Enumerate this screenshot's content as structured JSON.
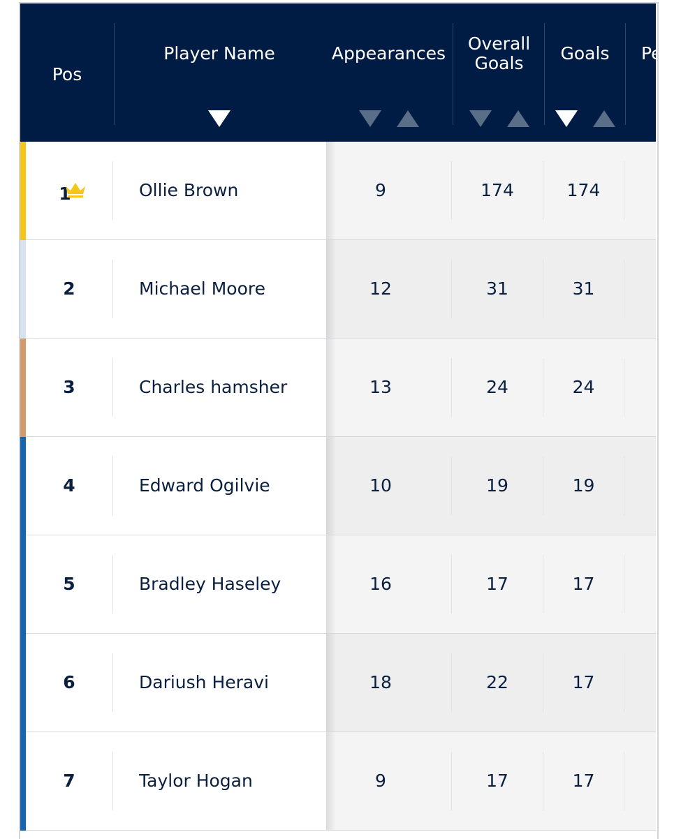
{
  "colors": {
    "header_bg": "#001c44",
    "gold": "#f5c518",
    "silver": "#d4e3ef",
    "bronze": "#d39a6c",
    "blue": "#1565b0"
  },
  "header": {
    "pos": "Pos",
    "player_name": "Player Name",
    "appearances": "Appearances",
    "overall_goals_line1": "Overall",
    "overall_goals_line2": "Goals",
    "goals": "Goals",
    "partial": "Pe"
  },
  "rows": [
    {
      "pos": "1",
      "name": "Ollie Brown",
      "appearances": "9",
      "overall_goals": "174",
      "goals": "174",
      "stripe": "gold",
      "crown_icon": "crown-icon"
    },
    {
      "pos": "2",
      "name": "Michael Moore",
      "appearances": "12",
      "overall_goals": "31",
      "goals": "31",
      "stripe": "silver"
    },
    {
      "pos": "3",
      "name": "Charles hamsher",
      "appearances": "13",
      "overall_goals": "24",
      "goals": "24",
      "stripe": "bronze"
    },
    {
      "pos": "4",
      "name": "Edward Ogilvie",
      "appearances": "10",
      "overall_goals": "19",
      "goals": "19",
      "stripe": "blue"
    },
    {
      "pos": "5",
      "name": "Bradley Haseley",
      "appearances": "16",
      "overall_goals": "17",
      "goals": "17",
      "stripe": "blue"
    },
    {
      "pos": "6",
      "name": "Dariush Heravi",
      "appearances": "18",
      "overall_goals": "22",
      "goals": "17",
      "stripe": "blue"
    },
    {
      "pos": "7",
      "name": "Taylor Hogan",
      "appearances": "9",
      "overall_goals": "17",
      "goals": "17",
      "stripe": "blue"
    }
  ]
}
